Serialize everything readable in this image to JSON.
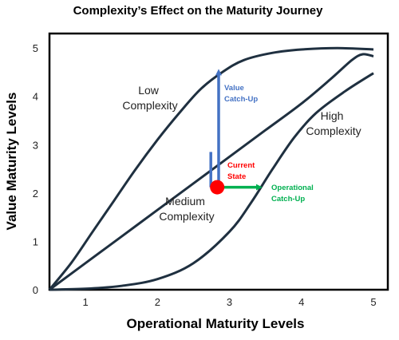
{
  "chart_data": {
    "type": "line",
    "title": "Complexity’s Effect on the Maturity Journey",
    "xlabel": "Operational Maturity Levels",
    "ylabel": "Value Maturity Levels",
    "xlim": [
      0.5,
      5.2
    ],
    "ylim": [
      0,
      5.3
    ],
    "x_ticks": [
      "1",
      "2",
      "3",
      "4",
      "5"
    ],
    "y_ticks": [
      "0",
      "1",
      "2",
      "3",
      "4",
      "5"
    ],
    "grid": false,
    "series": [
      {
        "name": "Low Complexity",
        "label_lines": [
          "Low",
          "Complexity"
        ],
        "points": [
          [
            0.5,
            0
          ],
          [
            0.8,
            0.55
          ],
          [
            1.1,
            1.2
          ],
          [
            1.4,
            1.85
          ],
          [
            1.7,
            2.5
          ],
          [
            2.0,
            3.1
          ],
          [
            2.3,
            3.65
          ],
          [
            2.6,
            4.15
          ],
          [
            2.9,
            4.5
          ],
          [
            3.2,
            4.75
          ],
          [
            3.6,
            4.9
          ],
          [
            4.0,
            4.97
          ],
          [
            4.5,
            5.0
          ],
          [
            5.0,
            4.97
          ]
        ]
      },
      {
        "name": "Medium Complexity",
        "label_lines": [
          "Medium",
          "Complexity"
        ],
        "points": [
          [
            0.5,
            0
          ],
          [
            1.0,
            0.55
          ],
          [
            1.5,
            1.1
          ],
          [
            2.0,
            1.65
          ],
          [
            2.5,
            2.2
          ],
          [
            3.0,
            2.75
          ],
          [
            3.5,
            3.3
          ],
          [
            4.0,
            3.85
          ],
          [
            4.4,
            4.35
          ],
          [
            4.7,
            4.75
          ],
          [
            4.85,
            4.87
          ],
          [
            5.0,
            4.83
          ]
        ]
      },
      {
        "name": "High Complexity",
        "label_lines": [
          "High",
          "Complexity"
        ],
        "points": [
          [
            0.5,
            0
          ],
          [
            1.0,
            0.02
          ],
          [
            1.5,
            0.08
          ],
          [
            2.0,
            0.22
          ],
          [
            2.5,
            0.55
          ],
          [
            3.0,
            1.2
          ],
          [
            3.3,
            1.8
          ],
          [
            3.6,
            2.5
          ],
          [
            3.9,
            3.15
          ],
          [
            4.2,
            3.65
          ],
          [
            4.6,
            4.1
          ],
          [
            5.0,
            4.48
          ]
        ]
      }
    ],
    "current_state": {
      "label_lines": [
        "Current",
        "State"
      ],
      "x": 2.83,
      "y": 2.12,
      "color": "#ff0000"
    },
    "annotations": [
      {
        "name": "value-catch-up",
        "label_lines": [
          "Value",
          "Catch-Up"
        ],
        "color": "#4472c4",
        "from": [
          2.85,
          2.12
        ],
        "to": [
          2.85,
          4.6
        ]
      },
      {
        "name": "operational-catch-up",
        "label_lines": [
          "Operational",
          "Catch-Up"
        ],
        "color": "#00b050",
        "from": [
          2.85,
          2.12
        ],
        "to": [
          3.48,
          2.12
        ]
      }
    ],
    "colors": {
      "curve": "#1f3040",
      "frame": "#000000",
      "minor_arrow": "#4472c4"
    }
  }
}
